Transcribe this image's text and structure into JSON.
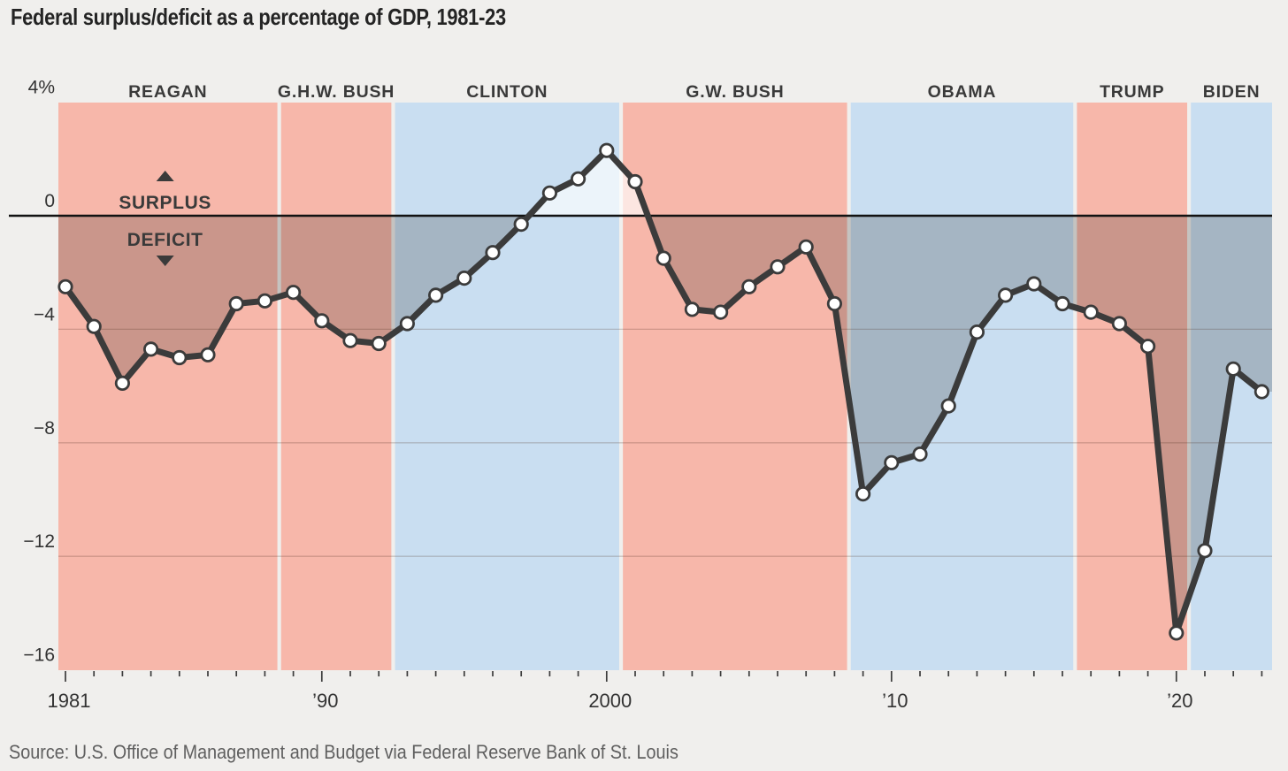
{
  "chart_data": {
    "type": "line",
    "title": "Federal surplus/deficit as a percentage of GDP, 1981-23",
    "source": "Source: U.S. Office of Management and Budget via Federal Reserve Bank of St. Louis",
    "ylabel": "",
    "xlabel": "",
    "ylim": [
      -16,
      4
    ],
    "xlim": [
      1980.75,
      2023.42
    ],
    "grid": true,
    "x": [
      1981,
      1982,
      1983,
      1984,
      1985,
      1986,
      1987,
      1988,
      1989,
      1990,
      1991,
      1992,
      1993,
      1994,
      1995,
      1996,
      1997,
      1998,
      1999,
      2000,
      2001,
      2002,
      2003,
      2004,
      2005,
      2006,
      2007,
      2008,
      2009,
      2010,
      2011,
      2012,
      2013,
      2014,
      2015,
      2016,
      2017,
      2018,
      2019,
      2020,
      2021,
      2022,
      2023
    ],
    "values": [
      -2.5,
      -3.9,
      -5.9,
      -4.7,
      -5.0,
      -4.9,
      -3.1,
      -3.0,
      -2.7,
      -3.7,
      -4.4,
      -4.5,
      -3.8,
      -2.8,
      -2.2,
      -1.3,
      -0.3,
      0.8,
      1.3,
      2.3,
      1.2,
      -1.5,
      -3.3,
      -3.4,
      -2.5,
      -1.8,
      -1.1,
      -3.1,
      -9.8,
      -8.7,
      -8.4,
      -6.7,
      -4.1,
      -2.8,
      -2.4,
      -3.1,
      -3.4,
      -3.8,
      -4.6,
      -14.7,
      -11.8,
      -5.4,
      -6.2
    ],
    "y_ticks": [
      {
        "value": 4,
        "label": "4%"
      },
      {
        "value": 0,
        "label": "0"
      },
      {
        "value": -4,
        "label": "−4"
      },
      {
        "value": -8,
        "label": "−8"
      },
      {
        "value": -12,
        "label": "−12"
      },
      {
        "value": -16,
        "label": "−16"
      }
    ],
    "x_ticks_labeled": [
      {
        "year": 1981,
        "label": "1981"
      },
      {
        "year": 1990,
        "label": "’90"
      },
      {
        "year": 2000,
        "label": "2000"
      },
      {
        "year": 2010,
        "label": "’10"
      },
      {
        "year": 2020,
        "label": "’20"
      }
    ],
    "president_bands": [
      {
        "label": "REAGAN",
        "party": "republican",
        "from": 1980.75,
        "to": 1988.44
      },
      {
        "label": "G.H.W. BUSH",
        "party": "republican",
        "from": 1988.57,
        "to": 1992.44
      },
      {
        "label": "CLINTON",
        "party": "democrat",
        "from": 1992.57,
        "to": 2000.44
      },
      {
        "label": "G.W. BUSH",
        "party": "republican",
        "from": 2000.57,
        "to": 2008.44
      },
      {
        "label": "OBAMA",
        "party": "democrat",
        "from": 2008.57,
        "to": 2016.38
      },
      {
        "label": "TRUMP",
        "party": "republican",
        "from": 2016.51,
        "to": 2020.38
      },
      {
        "label": "BIDEN",
        "party": "democrat",
        "from": 2020.51,
        "to": 2023.42
      }
    ],
    "annotations": {
      "surplus_label": "SURPLUS",
      "deficit_label": "DEFICIT",
      "up_arrow_icon": "▲",
      "down_arrow_icon": "▼",
      "anchor_year": 1984.5
    },
    "colors": {
      "background": "#f0efed",
      "republican_band": "#f7b7aa",
      "democrat_band": "#c9def1",
      "deficit_overlay": "rgba(25,18,14,0.20)",
      "surplus_overlay": "rgba(255,255,255,0.65)",
      "line": "#3b3b3b",
      "marker_fill": "#ffffff",
      "zero_line": "#121212",
      "gridline": "rgba(70,35,25,0.22)",
      "tick": "#3c3c3c",
      "axis_text": "#333333",
      "president_text": "#3a3a3a",
      "annotation_text": "#3a3a3a",
      "title_text": "#242424",
      "source_text": "#5f5f5f"
    }
  }
}
